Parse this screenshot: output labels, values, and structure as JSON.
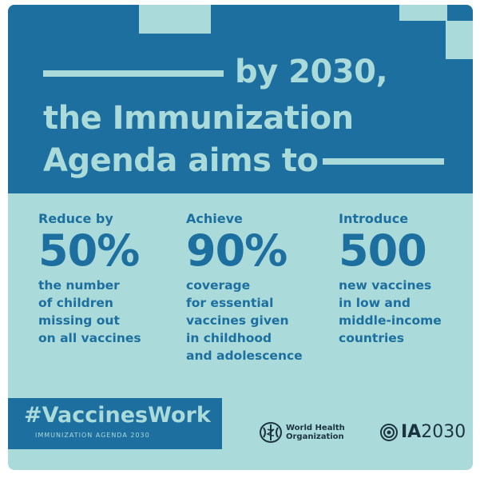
{
  "heading": {
    "line1": "by 2030,",
    "line2": "the Immunization",
    "line3": "Agenda aims to"
  },
  "goals": [
    {
      "verb": "Reduce by",
      "figure": "50%",
      "description": [
        "the number",
        "of children",
        "missing out",
        "on all vaccines"
      ]
    },
    {
      "verb": "Achieve",
      "figure": "90%",
      "description": [
        "coverage",
        "for essential",
        "vaccines given",
        "in childhood",
        "and adolescence"
      ]
    },
    {
      "verb": "Introduce",
      "figure": "500",
      "description": [
        "new vaccines",
        "in low and",
        "middle-income",
        "countries"
      ]
    }
  ],
  "footer": {
    "hashtag": "#VaccinesWork",
    "subline": "IMMUNIZATION AGENDA 2030",
    "who_logo": {
      "icon": "who-emblem-icon",
      "line1": "World Health",
      "line2": "Organization"
    },
    "ia_logo": {
      "icon": "ia2030-emblem-icon",
      "bold": "IA",
      "rest": "2030"
    }
  },
  "colors": {
    "dark_blue": "#1c6f9e",
    "light_teal": "#aadada",
    "logo_text": "#1c3440"
  }
}
